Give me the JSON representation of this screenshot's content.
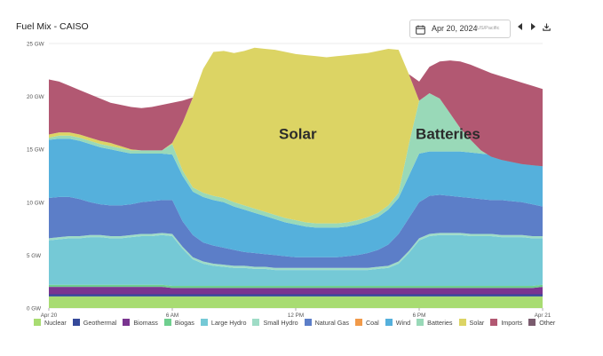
{
  "header": {
    "title": "Fuel Mix - CAISO",
    "date": "Apr 20, 2024",
    "timezone": "US/Pacific"
  },
  "icons": {
    "calendar": "calendar-icon",
    "prev": "chevron-left-icon",
    "next": "chevron-right-icon",
    "download": "download-icon"
  },
  "chart_data": {
    "type": "area",
    "stacked": true,
    "title": "Fuel Mix - CAISO",
    "xlabel": "",
    "ylabel": "",
    "unit": "GW",
    "x_hours": [
      0,
      0.5,
      1,
      1.5,
      2,
      2.5,
      3,
      3.5,
      4,
      4.5,
      5,
      5.5,
      6,
      6.5,
      7,
      7.5,
      8,
      8.5,
      9,
      9.5,
      10,
      10.5,
      11,
      11.5,
      12,
      12.5,
      13,
      13.5,
      14,
      14.5,
      15,
      15.5,
      16,
      16.5,
      17,
      17.5,
      18,
      18.5,
      19,
      19.5,
      20,
      20.5,
      21,
      21.5,
      22,
      22.5,
      23,
      23.5,
      24
    ],
    "xticks": [
      {
        "hour": 0,
        "label": "Apr 20"
      },
      {
        "hour": 6,
        "label": "6 AM"
      },
      {
        "hour": 12,
        "label": "12 PM"
      },
      {
        "hour": 18,
        "label": "6 PM"
      },
      {
        "hour": 24,
        "label": "Apr 21"
      }
    ],
    "yticks": [
      {
        "value": 0,
        "label": "0 GW"
      },
      {
        "value": 5,
        "label": "5 GW"
      },
      {
        "value": 10,
        "label": "10 GW"
      },
      {
        "value": 15,
        "label": "15 GW"
      },
      {
        "value": 20,
        "label": "20 GW"
      },
      {
        "value": 25,
        "label": "25 GW"
      }
    ],
    "xlim": [
      0,
      24
    ],
    "ylim": [
      0,
      25
    ],
    "series": [
      {
        "name": "Nuclear",
        "color": "#a8dc72",
        "boundary": [
          1.1,
          1.1,
          1.1,
          1.1,
          1.1,
          1.1,
          1.1,
          1.1,
          1.1,
          1.1,
          1.1,
          1.1,
          1.1,
          1.1,
          1.1,
          1.1,
          1.1,
          1.1,
          1.1,
          1.1,
          1.1,
          1.1,
          1.1,
          1.1,
          1.1,
          1.1,
          1.1,
          1.1,
          1.1,
          1.1,
          1.1,
          1.1,
          1.1,
          1.1,
          1.1,
          1.1,
          1.1,
          1.1,
          1.1,
          1.1,
          1.1,
          1.1,
          1.1,
          1.1,
          1.1,
          1.1,
          1.1,
          1.1,
          1.1
        ]
      },
      {
        "name": "Geothermal",
        "color": "#35499a",
        "boundary": [
          1.3,
          1.3,
          1.3,
          1.3,
          1.3,
          1.3,
          1.3,
          1.3,
          1.3,
          1.3,
          1.3,
          1.3,
          1.3,
          1.3,
          1.3,
          1.3,
          1.3,
          1.3,
          1.3,
          1.3,
          1.3,
          1.3,
          1.3,
          1.3,
          1.3,
          1.3,
          1.3,
          1.3,
          1.3,
          1.3,
          1.3,
          1.3,
          1.3,
          1.3,
          1.3,
          1.3,
          1.3,
          1.3,
          1.3,
          1.3,
          1.3,
          1.3,
          1.3,
          1.3,
          1.3,
          1.3,
          1.3,
          1.3,
          1.3
        ]
      },
      {
        "name": "Biomass",
        "color": "#7a3590",
        "boundary": [
          2.0,
          2.0,
          2.0,
          2.0,
          2.0,
          2.0,
          2.0,
          2.0,
          2.0,
          2.0,
          2.0,
          2.0,
          1.9,
          1.9,
          1.9,
          1.9,
          1.9,
          1.9,
          1.9,
          1.9,
          1.9,
          1.9,
          1.9,
          1.9,
          1.9,
          1.9,
          1.9,
          1.9,
          1.9,
          1.9,
          1.9,
          1.9,
          1.9,
          1.9,
          1.9,
          1.9,
          1.9,
          1.9,
          1.9,
          1.9,
          1.9,
          1.9,
          1.9,
          1.9,
          1.9,
          1.9,
          1.9,
          1.9,
          2.0
        ]
      },
      {
        "name": "Biogas",
        "color": "#6fcf8f",
        "boundary": [
          2.2,
          2.2,
          2.2,
          2.2,
          2.2,
          2.2,
          2.2,
          2.2,
          2.2,
          2.2,
          2.2,
          2.2,
          2.1,
          2.1,
          2.1,
          2.1,
          2.1,
          2.1,
          2.1,
          2.1,
          2.1,
          2.1,
          2.1,
          2.1,
          2.1,
          2.1,
          2.1,
          2.1,
          2.1,
          2.1,
          2.1,
          2.1,
          2.1,
          2.1,
          2.1,
          2.1,
          2.1,
          2.1,
          2.1,
          2.1,
          2.1,
          2.1,
          2.1,
          2.1,
          2.1,
          2.1,
          2.1,
          2.1,
          2.2
        ]
      },
      {
        "name": "Large Hydro",
        "color": "#75c9d6",
        "boundary": [
          6.4,
          6.5,
          6.6,
          6.6,
          6.7,
          6.7,
          6.6,
          6.6,
          6.7,
          6.8,
          6.8,
          6.9,
          6.8,
          5.6,
          4.6,
          4.2,
          4.0,
          3.9,
          3.8,
          3.8,
          3.7,
          3.7,
          3.6,
          3.6,
          3.6,
          3.6,
          3.6,
          3.6,
          3.6,
          3.6,
          3.6,
          3.6,
          3.7,
          3.8,
          4.2,
          5.2,
          6.4,
          6.8,
          6.9,
          6.9,
          6.9,
          6.8,
          6.8,
          6.8,
          6.7,
          6.7,
          6.7,
          6.6,
          6.6
        ]
      },
      {
        "name": "Small Hydro",
        "color": "#9fdcc6",
        "boundary": [
          6.6,
          6.7,
          6.8,
          6.8,
          6.9,
          6.9,
          6.8,
          6.8,
          6.9,
          7.0,
          7.0,
          7.1,
          7.0,
          5.8,
          4.8,
          4.4,
          4.2,
          4.1,
          4.0,
          4.0,
          3.9,
          3.9,
          3.8,
          3.8,
          3.8,
          3.8,
          3.8,
          3.8,
          3.8,
          3.8,
          3.8,
          3.8,
          3.9,
          4.0,
          4.4,
          5.4,
          6.6,
          7.0,
          7.1,
          7.1,
          7.1,
          7.0,
          7.0,
          7.0,
          6.9,
          6.9,
          6.9,
          6.8,
          6.8
        ]
      },
      {
        "name": "Natural Gas",
        "color": "#5c7ec8",
        "boundary": [
          10.4,
          10.5,
          10.5,
          10.3,
          10.0,
          9.8,
          9.7,
          9.7,
          9.8,
          10.0,
          10.1,
          10.2,
          10.2,
          8.2,
          6.9,
          6.2,
          5.9,
          5.7,
          5.5,
          5.3,
          5.2,
          5.1,
          5.0,
          4.9,
          4.8,
          4.8,
          4.8,
          4.8,
          4.8,
          4.9,
          5.0,
          5.2,
          5.5,
          6.0,
          7.0,
          8.5,
          10.0,
          10.6,
          10.7,
          10.6,
          10.5,
          10.4,
          10.3,
          10.2,
          10.2,
          10.1,
          10.0,
          9.8,
          9.6
        ]
      },
      {
        "name": "Coal",
        "color": "#f19a4a",
        "boundary": [
          10.4,
          10.5,
          10.5,
          10.3,
          10.0,
          9.8,
          9.7,
          9.7,
          9.8,
          10.0,
          10.1,
          10.2,
          10.2,
          8.2,
          6.9,
          6.2,
          5.9,
          5.7,
          5.5,
          5.3,
          5.2,
          5.1,
          5.0,
          4.9,
          4.8,
          4.8,
          4.8,
          4.8,
          4.8,
          4.9,
          5.0,
          5.2,
          5.5,
          6.0,
          7.0,
          8.5,
          10.0,
          10.6,
          10.7,
          10.6,
          10.5,
          10.4,
          10.3,
          10.2,
          10.2,
          10.1,
          10.0,
          9.8,
          9.6
        ]
      },
      {
        "name": "Wind",
        "color": "#55b0dc",
        "boundary": [
          15.9,
          16.0,
          16.0,
          15.8,
          15.5,
          15.2,
          15.0,
          14.8,
          14.6,
          14.6,
          14.6,
          14.6,
          14.5,
          12.5,
          11.0,
          10.5,
          10.2,
          10.0,
          9.6,
          9.3,
          9.0,
          8.7,
          8.4,
          8.1,
          7.9,
          7.7,
          7.6,
          7.6,
          7.6,
          7.7,
          7.9,
          8.2,
          8.6,
          9.3,
          10.4,
          12.5,
          14.6,
          14.8,
          14.8,
          14.8,
          14.8,
          14.7,
          14.6,
          14.5,
          14.4,
          14.2,
          14.0,
          13.7,
          13.5
        ]
      },
      {
        "name": "Batteries",
        "color": "#99d9b8",
        "boundary": [
          16.1,
          16.3,
          16.3,
          16.1,
          15.8,
          15.5,
          15.3,
          15.1,
          14.9,
          14.9,
          14.9,
          14.9,
          15.5,
          13.0,
          11.4,
          10.9,
          10.6,
          10.4,
          10.0,
          9.7,
          9.4,
          9.1,
          8.8,
          8.5,
          8.3,
          8.1,
          8.0,
          8.0,
          8.0,
          8.1,
          8.3,
          8.6,
          9.0,
          9.7,
          10.9,
          15.5,
          19.6,
          20.3,
          19.8,
          18.4,
          17.0,
          15.9,
          14.9,
          14.3,
          14.0,
          13.8,
          13.6,
          13.5,
          13.4
        ]
      },
      {
        "name": "Solar",
        "color": "#dcd464",
        "boundary": [
          16.4,
          16.6,
          16.6,
          16.4,
          16.1,
          15.8,
          15.6,
          15.3,
          15.0,
          14.9,
          14.9,
          14.9,
          15.6,
          17.5,
          19.9,
          22.6,
          24.2,
          24.3,
          24.1,
          24.3,
          24.6,
          24.5,
          24.4,
          24.2,
          24.0,
          23.9,
          23.8,
          23.7,
          23.8,
          23.9,
          24.0,
          24.1,
          24.3,
          24.5,
          24.4,
          22.1,
          19.6,
          20.3,
          19.8,
          18.4,
          17.0,
          15.9,
          14.9,
          14.3,
          14.0,
          13.8,
          13.6,
          13.5,
          13.4
        ]
      },
      {
        "name": "Imports",
        "color": "#b25872",
        "boundary": [
          21.6,
          21.4,
          21.0,
          20.6,
          20.2,
          19.8,
          19.4,
          19.2,
          19.0,
          18.9,
          19.0,
          19.2,
          19.4,
          19.6,
          19.9,
          22.6,
          24.2,
          24.3,
          24.1,
          24.3,
          24.6,
          24.5,
          24.4,
          24.2,
          24.0,
          23.9,
          23.8,
          23.7,
          23.8,
          23.9,
          24.0,
          24.1,
          24.3,
          24.5,
          24.4,
          22.1,
          21.4,
          22.8,
          23.3,
          23.4,
          23.3,
          23.0,
          22.6,
          22.2,
          21.9,
          21.6,
          21.3,
          21.0,
          20.7
        ]
      },
      {
        "name": "Other",
        "color": "#7a5b6e",
        "boundary": [
          21.6,
          21.4,
          21.0,
          20.6,
          20.2,
          19.8,
          19.4,
          19.2,
          19.0,
          18.9,
          19.0,
          19.2,
          19.4,
          19.6,
          19.9,
          22.6,
          24.2,
          24.3,
          24.1,
          24.3,
          24.6,
          24.5,
          24.4,
          24.2,
          24.0,
          23.9,
          23.8,
          23.7,
          23.8,
          23.9,
          24.0,
          24.1,
          24.3,
          24.5,
          24.4,
          22.1,
          21.4,
          22.8,
          23.3,
          23.4,
          23.3,
          23.0,
          22.6,
          22.2,
          21.9,
          21.6,
          21.3,
          21.0,
          20.7
        ]
      }
    ],
    "annotations": [
      {
        "text": "Solar",
        "hour": 12.1,
        "value": 16.0
      },
      {
        "text": "Batteries",
        "hour": 19.4,
        "value": 16.0
      }
    ],
    "legend": "bottom"
  }
}
